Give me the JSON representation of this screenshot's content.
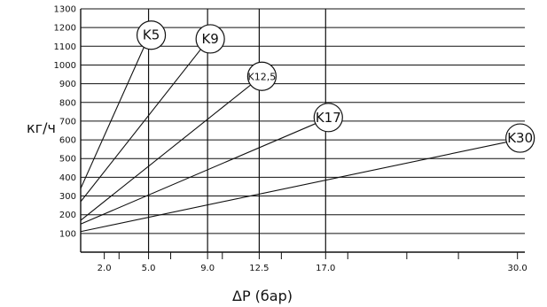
{
  "chart_data": {
    "type": "line",
    "xlabel": "ΔP (бар)",
    "ylabel": "кг/ч",
    "xlim": [
      0.4,
      30.5
    ],
    "ylim": [
      0,
      1300
    ],
    "y_ticks": [
      100,
      200,
      300,
      400,
      500,
      600,
      700,
      800,
      900,
      1000,
      1100,
      1200,
      1300
    ],
    "x_ticks": [
      {
        "value": 2.0,
        "label": "2.0"
      },
      {
        "value": 5.0,
        "label": "5.0"
      },
      {
        "value": 9.0,
        "label": "9.0"
      },
      {
        "value": 12.5,
        "label": "12.5"
      },
      {
        "value": 17.0,
        "label": "17.0"
      },
      {
        "value": 30.0,
        "label": "30.0"
      }
    ],
    "x_minor_ticks": [
      3.0,
      6.5,
      10.0,
      14.0,
      18.5,
      22.5,
      26.0
    ],
    "x_major_gridlines": [
      5.0,
      9.0,
      12.5,
      17.0
    ],
    "series": [
      {
        "name": "K5",
        "x": [
          0.4,
          5.0
        ],
        "y": [
          340,
          1150
        ]
      },
      {
        "name": "K9",
        "x": [
          0.4,
          9.0
        ],
        "y": [
          270,
          1130
        ]
      },
      {
        "name": "K12,5",
        "x": [
          0.4,
          12.5
        ],
        "y": [
          170,
          930
        ]
      },
      {
        "name": "K17",
        "x": [
          0.4,
          17.0
        ],
        "y": [
          150,
          710
        ]
      },
      {
        "name": "K30",
        "x": [
          0.4,
          30.0
        ],
        "y": [
          110,
          600
        ]
      }
    ],
    "grid": true,
    "legend": "none"
  }
}
